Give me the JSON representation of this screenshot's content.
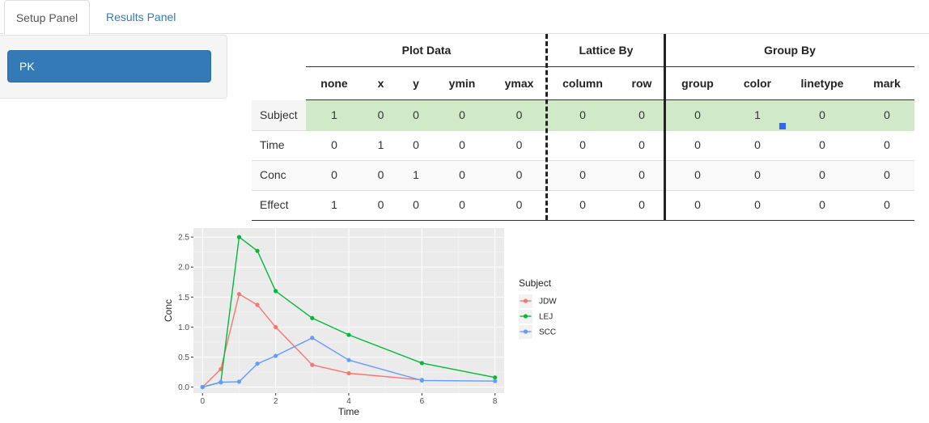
{
  "tabs": [
    {
      "label": "Setup Panel",
      "active": true
    },
    {
      "label": "Results Panel",
      "active": false
    }
  ],
  "sidebar": {
    "button_label": "PK",
    "button_color": "#337ab7"
  },
  "table": {
    "groups": [
      "Plot Data",
      "Lattice By",
      "Group By"
    ],
    "columns": [
      "none",
      "x",
      "y",
      "ymin",
      "ymax",
      "column",
      "row",
      "group",
      "color",
      "linetype",
      "mark"
    ],
    "rows": [
      {
        "label": "Subject",
        "values": [
          "1",
          "0",
          "0",
          "0",
          "0",
          "0",
          "0",
          "0",
          "1",
          "0",
          "0"
        ],
        "selected": true
      },
      {
        "label": "Time",
        "values": [
          "0",
          "1",
          "0",
          "0",
          "0",
          "0",
          "0",
          "0",
          "0",
          "0",
          "0"
        ],
        "selected": false
      },
      {
        "label": "Conc",
        "values": [
          "0",
          "0",
          "1",
          "0",
          "0",
          "0",
          "0",
          "0",
          "0",
          "0",
          "0"
        ],
        "selected": false
      },
      {
        "label": "Effect",
        "values": [
          "1",
          "0",
          "0",
          "0",
          "0",
          "0",
          "0",
          "0",
          "0",
          "0",
          "0"
        ],
        "selected": false
      }
    ],
    "selected_row_color": "#d0e9c6"
  },
  "chart_data": {
    "type": "line",
    "xlabel": "Time",
    "ylabel": "Conc",
    "xlim": [
      -0.25,
      8.25
    ],
    "ylim": [
      -0.1,
      2.65
    ],
    "xticks": [
      0,
      2,
      4,
      6,
      8
    ],
    "yticks": [
      0.0,
      0.5,
      1.0,
      1.5,
      2.0,
      2.5
    ],
    "ytick_labels": [
      "0.0",
      "0.5",
      "1.0",
      "1.5",
      "2.0",
      "2.5"
    ],
    "grid": true,
    "legend_title": "Subject",
    "legend_position": "right",
    "series": [
      {
        "name": "JDW",
        "color": "#F8766D",
        "x": [
          0,
          0.5,
          1,
          1.5,
          2,
          3,
          4,
          6
        ],
        "y": [
          0.0,
          0.3,
          1.55,
          1.37,
          1.0,
          0.37,
          0.23,
          0.12
        ]
      },
      {
        "name": "LEJ",
        "color": "#00BA38",
        "x": [
          0,
          0.5,
          1,
          1.5,
          2,
          3,
          4,
          6,
          8
        ],
        "y": [
          0.0,
          0.08,
          2.5,
          2.27,
          1.6,
          1.15,
          0.87,
          0.4,
          0.16
        ]
      },
      {
        "name": "SCC",
        "color": "#619CFF",
        "x": [
          0,
          0.5,
          1,
          1.5,
          2,
          3,
          4,
          6,
          8
        ],
        "y": [
          0.0,
          0.08,
          0.09,
          0.39,
          0.52,
          0.82,
          0.45,
          0.11,
          0.1
        ]
      }
    ]
  }
}
